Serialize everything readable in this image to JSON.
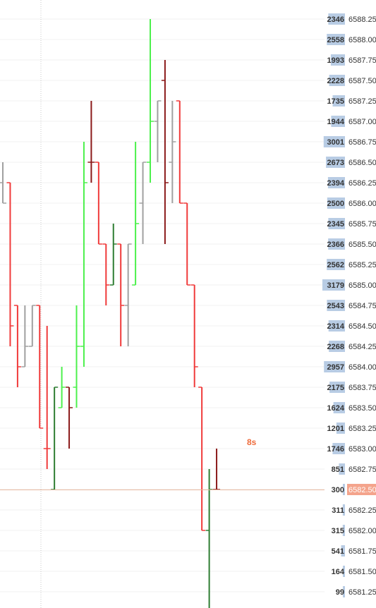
{
  "chart_data": {
    "type": "ohlc-ladder",
    "timer": "8s",
    "current_price": 6582.5,
    "current_price_label": "6582.50",
    "y_range": [
      6581.25,
      6588.25
    ],
    "colors": {
      "up": "#4cf04c",
      "down": "#f03a3a",
      "up_dark": "#2e7d32",
      "down_dark": "#8b1a1a",
      "neutral": "#a0a0a0",
      "price_line": "#e8b8a0",
      "current_bg": "#f4a48c",
      "volume_bar": "#b8cce4",
      "timer": "#ee6b3b"
    },
    "ladder": [
      {
        "price": 6588.25,
        "label": "6588.25",
        "volume": 2346
      },
      {
        "price": 6588.0,
        "label": "6588.00",
        "volume": 2558
      },
      {
        "price": 6587.75,
        "label": "6587.75",
        "volume": 1993
      },
      {
        "price": 6587.5,
        "label": "6587.50",
        "volume": 2228
      },
      {
        "price": 6587.25,
        "label": "6587.25",
        "volume": 1735
      },
      {
        "price": 6587.0,
        "label": "6587.00",
        "volume": 1944
      },
      {
        "price": 6586.75,
        "label": "6586.75",
        "volume": 3001
      },
      {
        "price": 6586.5,
        "label": "6586.50",
        "volume": 2673
      },
      {
        "price": 6586.25,
        "label": "6586.25",
        "volume": 2394
      },
      {
        "price": 6586.0,
        "label": "6586.00",
        "volume": 2500
      },
      {
        "price": 6585.75,
        "label": "6585.75",
        "volume": 2345
      },
      {
        "price": 6585.5,
        "label": "6585.50",
        "volume": 2366
      },
      {
        "price": 6585.25,
        "label": "6585.25",
        "volume": 2562
      },
      {
        "price": 6585.0,
        "label": "6585.00",
        "volume": 3179
      },
      {
        "price": 6584.75,
        "label": "6584.75",
        "volume": 2543
      },
      {
        "price": 6584.5,
        "label": "6584.50",
        "volume": 2314
      },
      {
        "price": 6584.25,
        "label": "6584.25",
        "volume": 2268
      },
      {
        "price": 6584.0,
        "label": "6584.00",
        "volume": 2957
      },
      {
        "price": 6583.75,
        "label": "6583.75",
        "volume": 2175
      },
      {
        "price": 6583.5,
        "label": "6583.50",
        "volume": 1624
      },
      {
        "price": 6583.25,
        "label": "6583.25",
        "volume": 1201
      },
      {
        "price": 6583.0,
        "label": "6583.00",
        "volume": 1746
      },
      {
        "price": 6582.75,
        "label": "6582.75",
        "volume": 851
      },
      {
        "price": 6582.5,
        "label": "6582.50",
        "volume": 300
      },
      {
        "price": 6582.25,
        "label": "6582.25",
        "volume": 311
      },
      {
        "price": 6582.0,
        "label": "6582.00",
        "volume": 315
      },
      {
        "price": 6581.75,
        "label": "6581.75",
        "volume": 541
      },
      {
        "price": 6581.5,
        "label": "6581.50",
        "volume": 164
      },
      {
        "price": 6581.25,
        "label": "6581.25",
        "volume": 99
      }
    ],
    "bars": [
      {
        "open": 6586.25,
        "high": 6586.5,
        "low": 6586.0,
        "close": 6586.0,
        "color": "neutral"
      },
      {
        "open": 6586.25,
        "high": 6586.25,
        "low": 6584.25,
        "close": 6584.5,
        "color": "down"
      },
      {
        "open": 6584.75,
        "high": 6584.75,
        "low": 6583.75,
        "close": 6584.0,
        "color": "down"
      },
      {
        "open": 6584.0,
        "high": 6584.75,
        "low": 6584.0,
        "close": 6584.25,
        "color": "neutral"
      },
      {
        "open": 6584.25,
        "high": 6584.75,
        "low": 6584.25,
        "close": 6584.75,
        "color": "neutral"
      },
      {
        "open": 6584.75,
        "high": 6584.75,
        "low": 6583.25,
        "close": 6583.25,
        "color": "down"
      },
      {
        "open": 6583.0,
        "high": 6584.5,
        "low": 6582.75,
        "close": 6583.0,
        "color": "down"
      },
      {
        "open": 6582.5,
        "high": 6583.75,
        "low": 6582.5,
        "close": 6583.75,
        "color": "up_dark"
      },
      {
        "open": 6583.5,
        "high": 6584.0,
        "low": 6583.5,
        "close": 6583.75,
        "color": "up"
      },
      {
        "open": 6583.75,
        "high": 6583.75,
        "low": 6583.0,
        "close": 6583.5,
        "color": "down_dark"
      },
      {
        "open": 6583.75,
        "high": 6584.75,
        "low": 6583.5,
        "close": 6584.25,
        "color": "up"
      },
      {
        "open": 6584.25,
        "high": 6586.75,
        "low": 6584.0,
        "close": 6586.25,
        "color": "up"
      },
      {
        "open": 6586.5,
        "high": 6587.25,
        "low": 6586.25,
        "close": 6586.5,
        "color": "down_dark"
      },
      {
        "open": 6586.5,
        "high": 6586.5,
        "low": 6585.5,
        "close": 6585.5,
        "color": "down"
      },
      {
        "open": 6585.5,
        "high": 6585.5,
        "low": 6584.75,
        "close": 6585.0,
        "color": "down"
      },
      {
        "open": 6585.0,
        "high": 6585.75,
        "low": 6585.0,
        "close": 6585.5,
        "color": "up_dark"
      },
      {
        "open": 6585.5,
        "high": 6585.5,
        "low": 6584.25,
        "close": 6584.75,
        "color": "down"
      },
      {
        "open": 6584.75,
        "high": 6585.5,
        "low": 6584.25,
        "close": 6585.5,
        "color": "neutral"
      },
      {
        "open": 6585.0,
        "high": 6586.75,
        "low": 6585.0,
        "close": 6585.75,
        "color": "up"
      },
      {
        "open": 6586.0,
        "high": 6586.5,
        "low": 6585.5,
        "close": 6586.5,
        "color": "neutral"
      },
      {
        "open": 6586.5,
        "high": 6588.25,
        "low": 6586.25,
        "close": 6587.0,
        "color": "up"
      },
      {
        "open": 6587.0,
        "high": 6587.25,
        "low": 6586.5,
        "close": 6587.25,
        "color": "neutral"
      },
      {
        "open": 6587.5,
        "high": 6587.75,
        "low": 6585.5,
        "close": 6586.25,
        "color": "down_dark"
      },
      {
        "open": 6586.5,
        "high": 6587.25,
        "low": 6586.0,
        "close": 6586.75,
        "color": "neutral"
      },
      {
        "open": 6587.25,
        "high": 6587.25,
        "low": 6586.0,
        "close": 6586.0,
        "color": "down"
      },
      {
        "open": 6586.0,
        "high": 6586.0,
        "low": 6585.0,
        "close": 6585.0,
        "color": "down"
      },
      {
        "open": 6585.0,
        "high": 6585.0,
        "low": 6583.75,
        "close": 6584.0,
        "color": "down"
      },
      {
        "open": 6583.75,
        "high": 6583.75,
        "low": 6582.0,
        "close": 6582.0,
        "color": "down"
      },
      {
        "open": 6582.0,
        "high": 6582.75,
        "low": 6581.0,
        "close": 6582.5,
        "color": "up_dark"
      },
      {
        "open": 6582.5,
        "high": 6583.0,
        "low": 6582.5,
        "close": 6582.5,
        "color": "down_dark"
      }
    ]
  }
}
